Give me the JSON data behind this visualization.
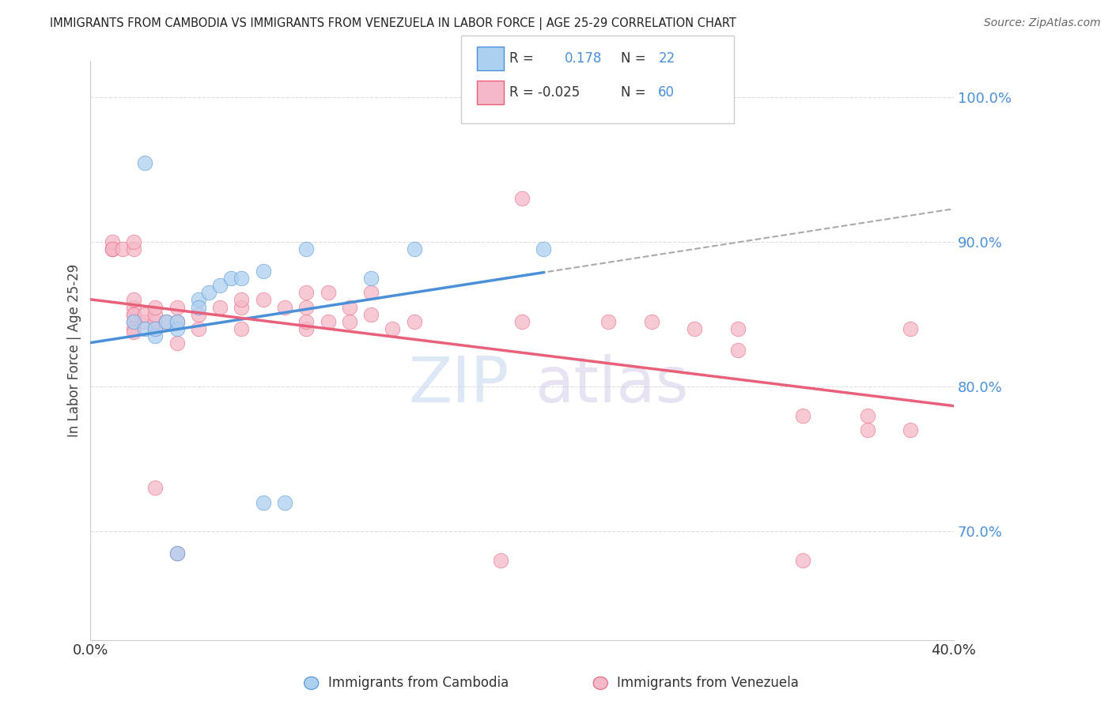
{
  "title": "IMMIGRANTS FROM CAMBODIA VS IMMIGRANTS FROM VENEZUELA IN LABOR FORCE | AGE 25-29 CORRELATION CHART",
  "source": "Source: ZipAtlas.com",
  "ylabel": "In Labor Force | Age 25-29",
  "watermark_part1": "ZIP",
  "watermark_part2": "atlas",
  "color_cambodia": "#add0f0",
  "color_venezuela": "#f5b8c8",
  "line_color_cambodia": "#4a90d9",
  "line_color_venezuela": "#e8607a",
  "background_color": "#ffffff",
  "grid_color": "#dddddd",
  "xlim": [
    0.0,
    0.4
  ],
  "ylim": [
    0.625,
    1.025
  ],
  "ytick_labels": [
    "100.0%",
    "90.0%",
    "80.0%",
    "70.0%"
  ],
  "ytick_values": [
    1.0,
    0.9,
    0.8,
    0.7
  ],
  "xtick_values": [
    0.0,
    0.04,
    0.08,
    0.12,
    0.16,
    0.2,
    0.24,
    0.28,
    0.32,
    0.36,
    0.4
  ],
  "xtick_labels_show": [
    "0.0%",
    "",
    "",
    "",
    "",
    "",
    "",
    "",
    "",
    "",
    "40.0%"
  ],
  "cambodia_x": [
    0.025,
    0.02,
    0.025,
    0.03,
    0.03,
    0.035,
    0.04,
    0.04,
    0.05,
    0.05,
    0.055,
    0.06,
    0.065,
    0.07,
    0.08,
    0.08,
    0.09,
    0.1,
    0.13,
    0.15,
    0.21,
    0.04
  ],
  "cambodia_y": [
    0.955,
    0.845,
    0.84,
    0.835,
    0.84,
    0.845,
    0.84,
    0.845,
    0.86,
    0.855,
    0.865,
    0.87,
    0.875,
    0.875,
    0.88,
    0.72,
    0.72,
    0.895,
    0.875,
    0.895,
    0.895,
    0.685
  ],
  "venezuela_x": [
    0.01,
    0.01,
    0.01,
    0.01,
    0.015,
    0.02,
    0.02,
    0.02,
    0.02,
    0.02,
    0.02,
    0.02,
    0.025,
    0.025,
    0.03,
    0.03,
    0.03,
    0.03,
    0.035,
    0.04,
    0.04,
    0.04,
    0.05,
    0.05,
    0.06,
    0.07,
    0.07,
    0.08,
    0.09,
    0.1,
    0.1,
    0.1,
    0.11,
    0.12,
    0.12,
    0.13,
    0.14,
    0.15,
    0.2,
    0.24,
    0.26,
    0.28,
    0.3,
    0.33,
    0.36,
    0.38,
    0.1,
    0.13,
    0.19,
    0.3,
    0.36,
    0.38,
    0.02,
    0.02,
    0.03,
    0.04,
    0.07,
    0.11,
    0.2,
    0.33
  ],
  "venezuela_y": [
    0.895,
    0.895,
    0.9,
    0.895,
    0.895,
    0.85,
    0.845,
    0.84,
    0.838,
    0.855,
    0.86,
    0.85,
    0.845,
    0.85,
    0.84,
    0.845,
    0.85,
    0.855,
    0.845,
    0.83,
    0.845,
    0.855,
    0.84,
    0.85,
    0.855,
    0.84,
    0.855,
    0.86,
    0.855,
    0.84,
    0.845,
    0.855,
    0.845,
    0.845,
    0.855,
    0.85,
    0.84,
    0.845,
    0.845,
    0.845,
    0.845,
    0.84,
    0.84,
    0.78,
    0.78,
    0.84,
    0.865,
    0.865,
    0.68,
    0.825,
    0.77,
    0.77,
    0.895,
    0.9,
    0.73,
    0.685,
    0.86,
    0.865,
    0.93,
    0.68
  ],
  "bottom_label1": "Immigrants from Cambodia",
  "bottom_label2": "Immigrants from Venezuela",
  "dpi": 100,
  "figsize": [
    14.06,
    8.92
  ]
}
